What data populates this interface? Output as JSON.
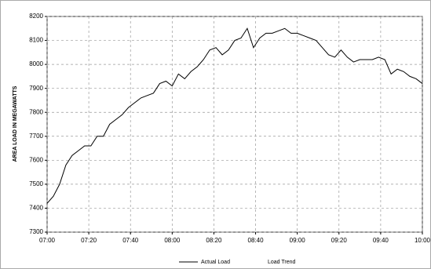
{
  "chart_data": {
    "type": "line",
    "ylabel": "AREA LOAD IN MEGAWATTS",
    "x": [
      "07:00",
      "07:03",
      "07:06",
      "07:09",
      "07:12",
      "07:15",
      "07:18",
      "07:21",
      "07:24",
      "07:27",
      "07:30",
      "07:33",
      "07:36",
      "07:39",
      "07:42",
      "07:45",
      "07:48",
      "07:51",
      "07:54",
      "07:57",
      "08:00",
      "08:03",
      "08:06",
      "08:09",
      "08:12",
      "08:15",
      "08:18",
      "08:21",
      "08:24",
      "08:27",
      "08:30",
      "08:33",
      "08:36",
      "08:39",
      "08:42",
      "08:45",
      "08:48",
      "08:51",
      "08:54",
      "08:57",
      "09:00",
      "09:03",
      "09:06",
      "09:09",
      "09:12",
      "09:15",
      "09:18",
      "09:21",
      "09:24",
      "09:27",
      "09:30",
      "09:33",
      "09:36",
      "09:39",
      "09:42",
      "09:45",
      "09:48",
      "09:51",
      "09:54",
      "09:57",
      "10:00"
    ],
    "series": [
      {
        "name": "Actual Load",
        "color": "#000000",
        "values": [
          7420,
          7450,
          7500,
          7580,
          7620,
          7640,
          7660,
          7660,
          7700,
          7700,
          7750,
          7770,
          7790,
          7820,
          7840,
          7860,
          7870,
          7880,
          7920,
          7930,
          7910,
          7960,
          7940,
          7970,
          7990,
          8020,
          8060,
          8070,
          8040,
          8060,
          8100,
          8110,
          8150,
          8070,
          8110,
          8130,
          8130,
          8140,
          8150,
          8130,
          8130,
          8120,
          8110,
          8100,
          8070,
          8040,
          8030,
          8060,
          8030,
          8010,
          8020,
          8020,
          8020,
          8030,
          8020,
          7960,
          7980,
          7970,
          7950,
          7940,
          7920
        ]
      },
      {
        "name": "Load Trend",
        "color": "#ffffff",
        "values": [
          null,
          null,
          null,
          null,
          null,
          null,
          null,
          null,
          null,
          null,
          null,
          null,
          null,
          null,
          null,
          null,
          null,
          null,
          null,
          null,
          null,
          null,
          null,
          null,
          null,
          null,
          null,
          null,
          null,
          null,
          null,
          null,
          null,
          null,
          null,
          null,
          null,
          null,
          null,
          null,
          null,
          null,
          null,
          null,
          null,
          null,
          null,
          null,
          null,
          null,
          null,
          null,
          null,
          null,
          null,
          null,
          null,
          null,
          null,
          null,
          null
        ]
      }
    ],
    "xlim": [
      "07:00",
      "10:00"
    ],
    "xticks": [
      "07:00",
      "07:20",
      "07:40",
      "08:00",
      "08:20",
      "08:40",
      "09:00",
      "09:20",
      "09:40",
      "10:00"
    ],
    "ylim": [
      7300,
      8200
    ],
    "yticks": [
      7300,
      7400,
      7500,
      7600,
      7700,
      7800,
      7900,
      8000,
      8100,
      8200
    ],
    "grid": true
  }
}
